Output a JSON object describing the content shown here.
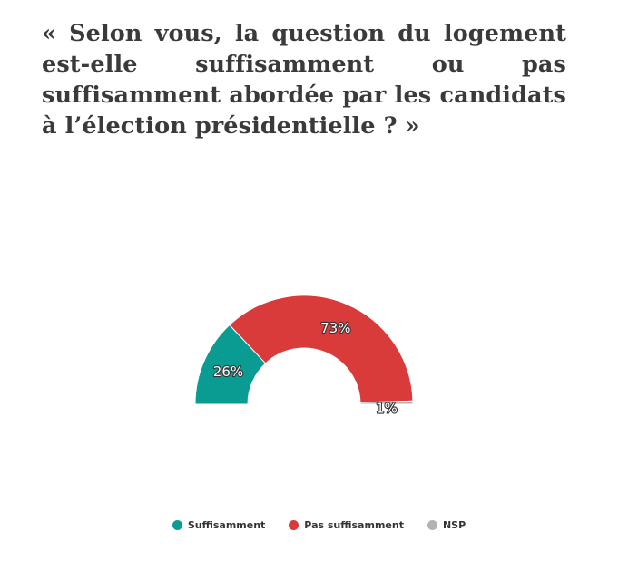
{
  "title": "« Selon vous, la question du logement est-elle suffisamment ou pas suffisamment abordée par les candidats à l’élection présidentielle ? »",
  "chart_data": {
    "type": "pie",
    "variant": "semi-donut",
    "title": "« Selon vous, la question du logement est-elle suffisamment ou pas suffisamment abordée par les candidats à l’élection présidentielle ? »",
    "categories": [
      "Suffisamment",
      "Pas suffisamment",
      "NSP"
    ],
    "values": [
      26,
      73,
      1
    ],
    "labels": [
      "26%",
      "73%",
      "1%"
    ],
    "colors": [
      "#0a9c92",
      "#d93a3a",
      "#b3b3b3"
    ],
    "legend_position": "bottom-center"
  },
  "legend": [
    {
      "label": "Suffisamment",
      "color": "#0a9c92"
    },
    {
      "label": "Pas suffisamment",
      "color": "#d93a3a"
    },
    {
      "label": "NSP",
      "color": "#b3b3b3"
    }
  ]
}
